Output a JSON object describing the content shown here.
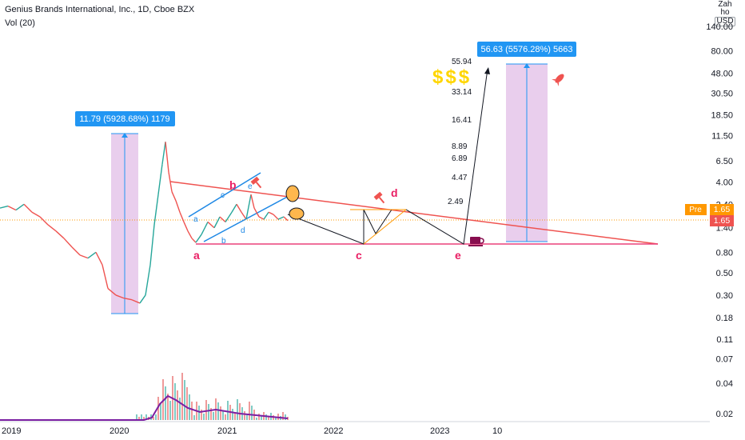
{
  "header": {
    "title": "Genius Brands International, Inc., 1D, Cboe BZX",
    "indicator": "Vol (20)"
  },
  "scale_box": {
    "top": "Zah ho",
    "currency": "USD"
  },
  "chart_data": {
    "type": "line",
    "yscale": "log",
    "ylim": [
      0.016,
      180
    ],
    "y_ticks": [
      "140.00",
      "80.00",
      "48.00",
      "30.50",
      "18.50",
      "11.50",
      "6.50",
      "4.00",
      "2.40",
      "1.40",
      "0.80",
      "0.50",
      "0.30",
      "0.18",
      "0.11",
      "0.07",
      "0.04",
      "0.02"
    ],
    "x_ticks": [
      "2019",
      "2020",
      "2021",
      "2022",
      "2023",
      "10"
    ],
    "price_tags": [
      {
        "label": "Pre",
        "value": "1.65",
        "color": "#ff9800"
      },
      {
        "value": "1.65",
        "color": "#ef5350"
      }
    ],
    "measure_labels": [
      {
        "text": "11.79 (5928.68%) 1179"
      },
      {
        "text": "56.63 (5576.28%) 5663"
      }
    ],
    "wave_labels": [
      {
        "text": "b",
        "color": "#e91e63"
      },
      {
        "text": "d",
        "color": "#e91e63"
      },
      {
        "text": "a",
        "color": "#e91e63"
      },
      {
        "text": "c",
        "color": "#e91e63"
      },
      {
        "text": "e",
        "color": "#e91e63"
      },
      {
        "text": "a",
        "color": "#1e88e5"
      },
      {
        "text": "b",
        "color": "#1e88e5"
      },
      {
        "text": "c",
        "color": "#1e88e5"
      },
      {
        "text": "d",
        "color": "#1e88e5"
      },
      {
        "text": "e",
        "color": "#1e88e5"
      }
    ],
    "projection_levels": [
      "55.94",
      "33.14",
      "16.41",
      "8.89",
      "6.89",
      "4.47",
      "2.49"
    ],
    "emoji_text": "$$$",
    "price_path": [
      [
        0,
        2.2
      ],
      [
        10,
        2.3
      ],
      [
        20,
        2.1
      ],
      [
        30,
        2.4
      ],
      [
        40,
        2.0
      ],
      [
        50,
        1.8
      ],
      [
        60,
        1.5
      ],
      [
        70,
        1.3
      ],
      [
        80,
        1.1
      ],
      [
        90,
        0.9
      ],
      [
        100,
        0.75
      ],
      [
        110,
        0.7
      ],
      [
        120,
        0.8
      ],
      [
        128,
        0.6
      ],
      [
        135,
        0.35
      ],
      [
        145,
        0.3
      ],
      [
        155,
        0.28
      ],
      [
        165,
        0.27
      ],
      [
        175,
        0.25
      ],
      [
        182,
        0.3
      ],
      [
        188,
        0.6
      ],
      [
        193,
        1.5
      ],
      [
        198,
        3.0
      ],
      [
        203,
        6.0
      ],
      [
        207,
        10.0
      ],
      [
        211,
        5.0
      ],
      [
        215,
        3.2
      ],
      [
        220,
        2.6
      ],
      [
        225,
        2.0
      ],
      [
        230,
        1.6
      ],
      [
        235,
        1.3
      ],
      [
        240,
        1.1
      ],
      [
        245,
        1.0
      ],
      [
        252,
        1.2
      ],
      [
        260,
        1.6
      ],
      [
        268,
        1.4
      ],
      [
        275,
        1.8
      ],
      [
        282,
        1.6
      ],
      [
        290,
        2.0
      ],
      [
        296,
        2.4
      ],
      [
        302,
        2.0
      ],
      [
        308,
        1.7
      ],
      [
        314,
        3.0
      ],
      [
        318,
        2.2
      ],
      [
        324,
        1.8
      ],
      [
        330,
        1.7
      ],
      [
        336,
        2.0
      ],
      [
        342,
        1.9
      ],
      [
        348,
        1.7
      ],
      [
        355,
        1.8
      ],
      [
        360,
        1.65
      ]
    ]
  }
}
